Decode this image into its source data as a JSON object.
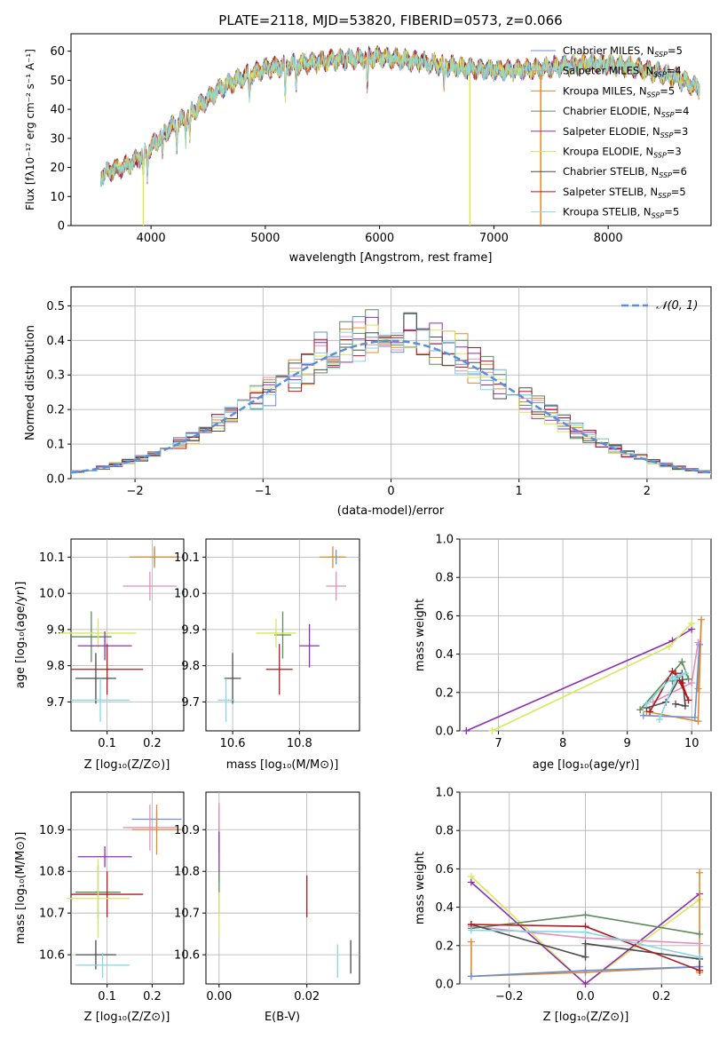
{
  "figure_title": "PLATE=2118, MJD=53820, FIBERID=0573, z=0.066",
  "colors": {
    "chabrier_miles": "#6b8fd6",
    "salpeter_miles": "#e28fbd",
    "kroupa_miles": "#e08a2e",
    "chabrier_elodie": "#5e8a5e",
    "salpeter_elodie": "#8e2fb1",
    "kroupa_elodie": "#d8e85a",
    "chabrier_stelib": "#4a4a4a",
    "salpeter_stelib": "#b0181e",
    "kroupa_stelib": "#86d6e3",
    "normal_curve": "#5b8ed8",
    "grid": "#b0b0b0"
  },
  "chart_data": [
    {
      "id": "spectrum",
      "type": "line",
      "xlabel": "wavelength [Angstrom, rest frame]",
      "ylabel": "Flux [fλ10⁻¹⁷ erg cm⁻² s⁻¹ A⁻¹]",
      "xlim": [
        3300,
        8900
      ],
      "ylim": [
        0,
        66
      ],
      "xticks": [
        4000,
        5000,
        6000,
        7000,
        8000
      ],
      "yticks": [
        0,
        10,
        20,
        30,
        40,
        50,
        60
      ],
      "grid": false,
      "legend_position": "top-right",
      "continuum": {
        "x": [
          3560,
          3650,
          3750,
          3850,
          3950,
          4050,
          4150,
          4300,
          4450,
          4600,
          4800,
          5000,
          5200,
          5400,
          5600,
          5800,
          6000,
          6200,
          6400,
          6600,
          6800,
          7000,
          7200,
          7400,
          7600,
          7800,
          8000,
          8200,
          8400,
          8600,
          8800
        ],
        "y": [
          17,
          19,
          20,
          22,
          25,
          29,
          33,
          37,
          42,
          47,
          51,
          54,
          55,
          56,
          57,
          57.5,
          58,
          57,
          56,
          55,
          54,
          53.5,
          53.5,
          54,
          55,
          55.5,
          55.5,
          54.5,
          53,
          51,
          47
        ]
      },
      "series": [
        {
          "name": "Chabrier MILES, Nₛₛₚ=5",
          "label_main": "Chabrier MILES, N",
          "label_sub": "SSP",
          "label_tail": "=5",
          "color_key": "chabrier_miles"
        },
        {
          "name": "Salpeter MILES, Nₛₛₚ=4",
          "label_main": "Salpeter MILES, N",
          "label_sub": "SSP",
          "label_tail": "=4",
          "color_key": "salpeter_miles"
        },
        {
          "name": "Kroupa MILES, Nₛₛₚ=5",
          "label_main": "Kroupa MILES, N",
          "label_sub": "SSP",
          "label_tail": "=5",
          "color_key": "kroupa_miles"
        },
        {
          "name": "Chabrier ELODIE, Nₛₛₚ=4",
          "label_main": "Chabrier ELODIE, N",
          "label_sub": "SSP",
          "label_tail": "=4",
          "color_key": "chabrier_elodie"
        },
        {
          "name": "Salpeter ELODIE, Nₛₛₚ=3",
          "label_main": "Salpeter ELODIE, N",
          "label_sub": "SSP",
          "label_tail": "=3",
          "color_key": "salpeter_elodie"
        },
        {
          "name": "Kroupa ELODIE, Nₛₛₚ=3",
          "label_main": "Kroupa ELODIE, N",
          "label_sub": "SSP",
          "label_tail": "=3",
          "color_key": "kroupa_elodie"
        },
        {
          "name": "Chabrier STELIB, Nₛₛₚ=6",
          "label_main": "Chabrier STELIB, N",
          "label_sub": "SSP",
          "label_tail": "=6",
          "color_key": "chabrier_stelib"
        },
        {
          "name": "Salpeter STELIB, Nₛₛₚ=5",
          "label_main": "Salpeter STELIB, N",
          "label_sub": "SSP",
          "label_tail": "=5",
          "color_key": "salpeter_stelib"
        },
        {
          "name": "Kroupa STELIB, Nₛₛₚ=5",
          "label_main": "Kroupa STELIB, N",
          "label_sub": "SSP",
          "label_tail": "=5",
          "color_key": "kroupa_stelib"
        }
      ],
      "absorption_lines": [
        {
          "x": 3933,
          "y": 0,
          "color_key": "kroupa_elodie"
        },
        {
          "x": 6790,
          "y": 0,
          "color_key": "kroupa_elodie"
        },
        {
          "x": 7410,
          "y": 0,
          "color_key": "kroupa_miles"
        }
      ]
    },
    {
      "id": "residuals",
      "type": "area",
      "xlabel": "(data-model)/error",
      "ylabel": "Normed distribution",
      "xlim": [
        -2.5,
        2.5
      ],
      "ylim": [
        0,
        0.555
      ],
      "xticks": [
        -2,
        -1,
        0,
        1,
        2
      ],
      "yticks": [
        0,
        0.1,
        0.2,
        0.3,
        0.4,
        0.5
      ],
      "grid": true,
      "legend_position": "top-right",
      "legend_label": "𝒩(0, 1)",
      "bin_width": 0.1,
      "normal": {
        "mean": 0,
        "sigma": 1
      }
    },
    {
      "id": "age_vs_z",
      "type": "scatter",
      "xlabel": "Z [log₁₀(Z/Z⊙)]",
      "ylabel": "age  [log₁₀(age/yr)]",
      "xlim": [
        0.02,
        0.27
      ],
      "ylim": [
        9.62,
        10.15
      ],
      "xticks": [
        0.1,
        0.2
      ],
      "yticks": [
        9.7,
        9.8,
        9.9,
        10.0,
        10.1
      ],
      "grid": true,
      "points": [
        {
          "color_key": "chabrier_miles",
          "x": 0.205,
          "xerr": 0.055,
          "y": 10.1,
          "yerr": 0.025
        },
        {
          "color_key": "kroupa_miles",
          "x": 0.205,
          "xerr": 0.055,
          "y": 10.1,
          "yerr": 0.03
        },
        {
          "color_key": "salpeter_miles",
          "x": 0.195,
          "xerr": 0.06,
          "y": 10.02,
          "yerr": 0.04
        },
        {
          "color_key": "chabrier_elodie",
          "x": 0.065,
          "xerr": 0.045,
          "y": 9.88,
          "yerr": 0.07
        },
        {
          "color_key": "kroupa_elodie",
          "x": 0.08,
          "xerr": 0.085,
          "y": 9.89,
          "yerr": 0.04
        },
        {
          "color_key": "salpeter_elodie",
          "x": 0.095,
          "xerr": 0.06,
          "y": 9.855,
          "yerr": 0.04
        },
        {
          "color_key": "salpeter_stelib",
          "x": 0.1,
          "xerr": 0.08,
          "y": 9.79,
          "yerr": 0.07
        },
        {
          "color_key": "chabrier_stelib",
          "x": 0.075,
          "xerr": 0.045,
          "y": 9.765,
          "yerr": 0.07
        },
        {
          "color_key": "kroupa_stelib",
          "x": 0.085,
          "xerr": 0.065,
          "y": 9.705,
          "yerr": 0.06
        }
      ]
    },
    {
      "id": "age_vs_mass",
      "type": "scatter",
      "xlabel": "mass [log₁₀(M/M⊙)]",
      "ylabel": "",
      "xlim": [
        10.52,
        10.98
      ],
      "ylim": [
        9.62,
        10.15
      ],
      "xticks": [
        10.6,
        10.8
      ],
      "yticks": [
        9.7,
        9.8,
        9.9,
        10.0,
        10.1
      ],
      "grid": true,
      "points": [
        {
          "color_key": "chabrier_miles",
          "x": 10.91,
          "xerr": 0.025,
          "y": 10.1,
          "yerr": 0.02
        },
        {
          "color_key": "kroupa_miles",
          "x": 10.9,
          "xerr": 0.04,
          "y": 10.1,
          "yerr": 0.03
        },
        {
          "color_key": "salpeter_miles",
          "x": 10.91,
          "xerr": 0.03,
          "y": 10.02,
          "yerr": 0.04
        },
        {
          "color_key": "chabrier_elodie",
          "x": 10.75,
          "xerr": 0.025,
          "y": 9.885,
          "yerr": 0.065
        },
        {
          "color_key": "kroupa_elodie",
          "x": 10.73,
          "xerr": 0.06,
          "y": 9.89,
          "yerr": 0.04
        },
        {
          "color_key": "salpeter_elodie",
          "x": 10.83,
          "xerr": 0.03,
          "y": 9.855,
          "yerr": 0.06
        },
        {
          "color_key": "salpeter_stelib",
          "x": 10.74,
          "xerr": 0.04,
          "y": 9.79,
          "yerr": 0.07
        },
        {
          "color_key": "chabrier_stelib",
          "x": 10.6,
          "xerr": 0.025,
          "y": 9.765,
          "yerr": 0.07
        },
        {
          "color_key": "kroupa_stelib",
          "x": 10.58,
          "xerr": 0.025,
          "y": 9.705,
          "yerr": 0.06
        }
      ]
    },
    {
      "id": "weight_vs_age",
      "type": "line",
      "xlabel": "age  [log₁₀(age/yr)]",
      "ylabel": "mass weight",
      "xlim": [
        6.4,
        10.3
      ],
      "ylim": [
        0,
        1
      ],
      "xticks": [
        7,
        8,
        9,
        10
      ],
      "yticks": [
        0,
        0.2,
        0.4,
        0.6,
        0.8,
        1.0
      ],
      "grid": true,
      "series": [
        {
          "color_key": "salpeter_elodie",
          "x": [
            6.5,
            9.7,
            10.0
          ],
          "y": [
            0.0,
            0.47,
            0.53
          ]
        },
        {
          "color_key": "kroupa_elodie",
          "x": [
            6.9,
            9.65,
            10.0
          ],
          "y": [
            0.0,
            0.44,
            0.56
          ]
        },
        {
          "color_key": "kroupa_miles",
          "x": [
            9.3,
            10.1,
            10.15,
            10.1
          ],
          "y": [
            0.1,
            0.05,
            0.58,
            0.22
          ]
        },
        {
          "color_key": "chabrier_miles",
          "x": [
            9.25,
            10.05,
            10.12
          ],
          "y": [
            0.08,
            0.07,
            0.45
          ]
        },
        {
          "color_key": "salpeter_miles",
          "x": [
            9.4,
            10.0,
            10.1
          ],
          "y": [
            0.15,
            0.25,
            0.46
          ]
        },
        {
          "color_key": "chabrier_elodie",
          "x": [
            9.2,
            9.85,
            9.95,
            9.7
          ],
          "y": [
            0.11,
            0.36,
            0.27,
            0.26
          ]
        },
        {
          "color_key": "chabrier_stelib",
          "x": [
            9.3,
            9.6,
            9.85,
            9.9,
            9.75
          ],
          "y": [
            0.12,
            0.15,
            0.3,
            0.13,
            0.14
          ]
        },
        {
          "color_key": "salpeter_stelib",
          "x": [
            9.35,
            9.7,
            9.85,
            9.95,
            9.75
          ],
          "y": [
            0.1,
            0.31,
            0.25,
            0.16,
            0.3
          ]
        },
        {
          "color_key": "kroupa_stelib",
          "x": [
            9.3,
            9.7,
            9.9,
            9.75,
            9.5
          ],
          "y": [
            0.14,
            0.28,
            0.3,
            0.27,
            0.06
          ]
        }
      ]
    },
    {
      "id": "mass_vs_z",
      "type": "scatter",
      "xlabel": "Z [log₁₀(Z/Z⊙)]",
      "ylabel": "mass [log₁₀(M/M⊙)]",
      "xlim": [
        0.02,
        0.27
      ],
      "ylim": [
        10.53,
        10.99
      ],
      "xticks": [
        0.1,
        0.2
      ],
      "yticks": [
        10.6,
        10.7,
        10.8,
        10.9
      ],
      "grid": true,
      "points": [
        {
          "color_key": "chabrier_miles",
          "x": 0.21,
          "xerr": 0.055,
          "y": 10.925,
          "yerr": 0.02
        },
        {
          "color_key": "kroupa_miles",
          "x": 0.21,
          "xerr": 0.055,
          "y": 10.9,
          "yerr": 0.06
        },
        {
          "color_key": "salpeter_miles",
          "x": 0.195,
          "xerr": 0.06,
          "y": 10.905,
          "yerr": 0.055
        },
        {
          "color_key": "salpeter_elodie",
          "x": 0.095,
          "xerr": 0.06,
          "y": 10.835,
          "yerr": 0.025
        },
        {
          "color_key": "chabrier_elodie",
          "x": 0.08,
          "xerr": 0.05,
          "y": 10.75,
          "yerr": 0.065
        },
        {
          "color_key": "salpeter_stelib",
          "x": 0.1,
          "xerr": 0.08,
          "y": 10.745,
          "yerr": 0.055
        },
        {
          "color_key": "kroupa_elodie",
          "x": 0.08,
          "xerr": 0.07,
          "y": 10.735,
          "yerr": 0.095
        },
        {
          "color_key": "chabrier_stelib",
          "x": 0.075,
          "xerr": 0.045,
          "y": 10.6,
          "yerr": 0.035
        },
        {
          "color_key": "kroupa_stelib",
          "x": 0.09,
          "xerr": 0.06,
          "y": 10.575,
          "yerr": 0.03
        }
      ]
    },
    {
      "id": "mass_vs_ebv",
      "type": "scatter",
      "xlabel": "E(B-V)",
      "ylabel": "",
      "xlim": [
        -0.003,
        0.032
      ],
      "ylim": [
        10.53,
        10.99
      ],
      "xticks": [
        0.0,
        0.02
      ],
      "yticks": [
        10.6,
        10.7,
        10.8,
        10.9
      ],
      "grid": true,
      "points": [
        {
          "color_key": "chabrier_miles",
          "x": 0.0,
          "xerr": 0,
          "y": 10.925,
          "yerr": 0.03
        },
        {
          "color_key": "kroupa_miles",
          "x": 0.0,
          "xerr": 0,
          "y": 10.9,
          "yerr": 0.05
        },
        {
          "color_key": "salpeter_miles",
          "x": 0.0,
          "xerr": 0,
          "y": 10.905,
          "yerr": 0.06
        },
        {
          "color_key": "salpeter_elodie",
          "x": 0.0,
          "xerr": 0,
          "y": 10.835,
          "yerr": 0.06
        },
        {
          "color_key": "chabrier_elodie",
          "x": 0.0,
          "xerr": 0,
          "y": 10.75,
          "yerr": 0.05
        },
        {
          "color_key": "kroupa_elodie",
          "x": 0.0,
          "xerr": 0,
          "y": 10.7,
          "yerr": 0.05
        },
        {
          "color_key": "salpeter_stelib",
          "x": 0.02,
          "xerr": 0,
          "y": 10.74,
          "yerr": 0.05
        },
        {
          "color_key": "chabrier_stelib",
          "x": 0.03,
          "xerr": 0,
          "y": 10.595,
          "yerr": 0.04
        },
        {
          "color_key": "kroupa_stelib",
          "x": 0.027,
          "xerr": 0,
          "y": 10.585,
          "yerr": 0.04
        }
      ]
    },
    {
      "id": "weight_vs_z",
      "type": "line",
      "xlabel": "Z [log₁₀(Z/Z⊙)]",
      "ylabel": "mass weight",
      "xlim": [
        -0.33,
        0.33
      ],
      "ylim": [
        0,
        1
      ],
      "xticks": [
        -0.2,
        0.0,
        0.2
      ],
      "yticks": [
        0,
        0.2,
        0.4,
        0.6,
        0.8,
        1.0
      ],
      "grid": true,
      "series": [
        {
          "color_key": "kroupa_elodie",
          "x": [
            -0.3,
            0.0,
            0.3
          ],
          "y": [
            0.56,
            0.0,
            0.44
          ]
        },
        {
          "color_key": "salpeter_elodie",
          "x": [
            -0.3,
            0.0,
            0.3
          ],
          "y": [
            0.53,
            0.0,
            0.47
          ]
        },
        {
          "color_key": "kroupa_miles",
          "x": [
            -0.3,
            -0.3,
            0.0,
            0.3,
            0.3,
            0.3
          ],
          "y": [
            0.22,
            0.04,
            0.06,
            0.09,
            0.58,
            0.06
          ]
        },
        {
          "color_key": "chabrier_miles",
          "x": [
            -0.3,
            0.0,
            0.3
          ],
          "y": [
            0.04,
            0.07,
            0.09
          ]
        },
        {
          "color_key": "salpeter_miles",
          "x": [
            -0.3,
            0.0,
            0.3
          ],
          "y": [
            0.3,
            0.24,
            0.21
          ]
        },
        {
          "color_key": "chabrier_elodie",
          "x": [
            -0.3,
            0.0,
            0.3
          ],
          "y": [
            0.29,
            0.36,
            0.26
          ]
        },
        {
          "color_key": "chabrier_stelib",
          "x": [
            -0.3,
            0.0,
            0.0,
            0.3,
            0.3
          ],
          "y": [
            0.31,
            0.14,
            0.21,
            0.13,
            0.07
          ]
        },
        {
          "color_key": "salpeter_stelib",
          "x": [
            -0.3,
            0.0,
            0.3
          ],
          "y": [
            0.31,
            0.3,
            0.07
          ]
        },
        {
          "color_key": "kroupa_stelib",
          "x": [
            -0.3,
            0.0,
            0.3
          ],
          "y": [
            0.28,
            0.27,
            0.14
          ]
        }
      ]
    }
  ]
}
